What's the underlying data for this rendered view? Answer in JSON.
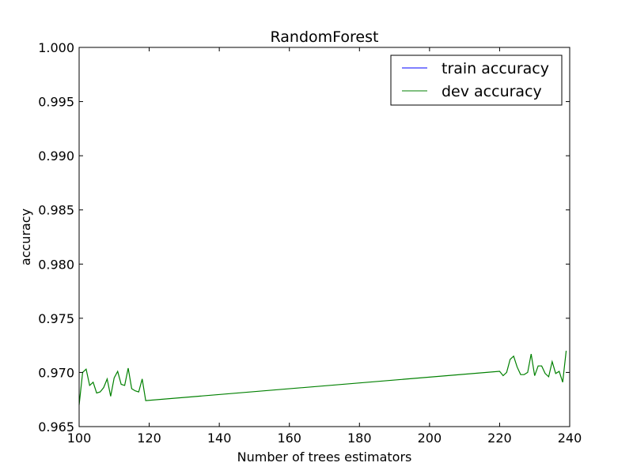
{
  "chart_data": {
    "type": "line",
    "title": "RandomForest",
    "xlabel": "Number of trees estimators",
    "ylabel": "accuracy",
    "xlim": [
      100,
      240
    ],
    "ylim": [
      0.965,
      1.0
    ],
    "xticks": [
      100,
      120,
      140,
      160,
      180,
      200,
      220,
      240
    ],
    "yticks": [
      "0.965",
      "0.970",
      "0.975",
      "0.980",
      "0.985",
      "0.990",
      "0.995",
      "1.000"
    ],
    "grid": false,
    "legend_position": "top-right",
    "series": [
      {
        "name": "train accuracy",
        "color": "#0000ff",
        "x": [],
        "y": []
      },
      {
        "name": "dev accuracy",
        "color": "#008000",
        "x": [
          100,
          101,
          102,
          103,
          104,
          105,
          106,
          107,
          108,
          109,
          110,
          111,
          112,
          113,
          114,
          115,
          116,
          117,
          118,
          119,
          220,
          221,
          222,
          223,
          224,
          225,
          226,
          227,
          228,
          229,
          230,
          231,
          232,
          233,
          234,
          235,
          236,
          237,
          238,
          239
        ],
        "y": [
          0.967,
          0.97,
          0.9703,
          0.9688,
          0.9691,
          0.9681,
          0.9682,
          0.9686,
          0.9694,
          0.9678,
          0.9695,
          0.9701,
          0.9689,
          0.9688,
          0.9704,
          0.9685,
          0.9683,
          0.9682,
          0.9694,
          0.9674,
          0.9701,
          0.9697,
          0.97,
          0.9712,
          0.9715,
          0.9705,
          0.9698,
          0.9698,
          0.97,
          0.9717,
          0.9697,
          0.9706,
          0.9706,
          0.9699,
          0.9696,
          0.971,
          0.9699,
          0.9701,
          0.9691,
          0.972
        ]
      }
    ]
  }
}
